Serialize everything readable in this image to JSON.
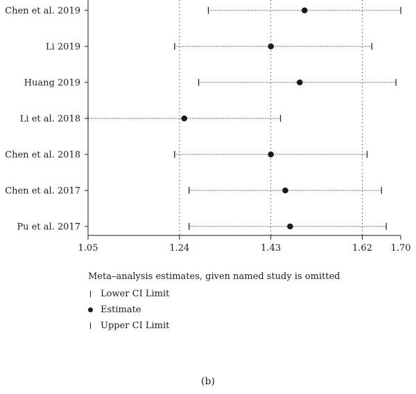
{
  "chart_data": {
    "type": "forest",
    "x_ticks": [
      1.05,
      1.24,
      1.43,
      1.62,
      1.7
    ],
    "xlim": [
      1.05,
      1.7
    ],
    "reference_lines": [
      1.24,
      1.43,
      1.62
    ],
    "studies": [
      {
        "label": "Chen et al. 2019",
        "lower": 1.3,
        "estimate": 1.5,
        "upper": 1.7
      },
      {
        "label": "Li 2019",
        "lower": 1.23,
        "estimate": 1.43,
        "upper": 1.64
      },
      {
        "label": "Huang 2019",
        "lower": 1.28,
        "estimate": 1.49,
        "upper": 1.69
      },
      {
        "label": "Li et al. 2018",
        "lower": 1.05,
        "estimate": 1.25,
        "upper": 1.45
      },
      {
        "label": "Chen et al. 2018",
        "lower": 1.23,
        "estimate": 1.43,
        "upper": 1.63
      },
      {
        "label": "Chen et al. 2017",
        "lower": 1.26,
        "estimate": 1.46,
        "upper": 1.66
      },
      {
        "label": "Pu et al. 2017",
        "lower": 1.26,
        "estimate": 1.47,
        "upper": 1.67
      }
    ],
    "legend": {
      "title": "Meta–analysis estimates, given named study is omitted",
      "items": [
        {
          "symbol": "bar",
          "label": "Lower CI Limit"
        },
        {
          "symbol": "dot",
          "label": "Estimate"
        },
        {
          "symbol": "bar",
          "label": "Upper CI Limit"
        }
      ]
    }
  },
  "caption": "(b)"
}
